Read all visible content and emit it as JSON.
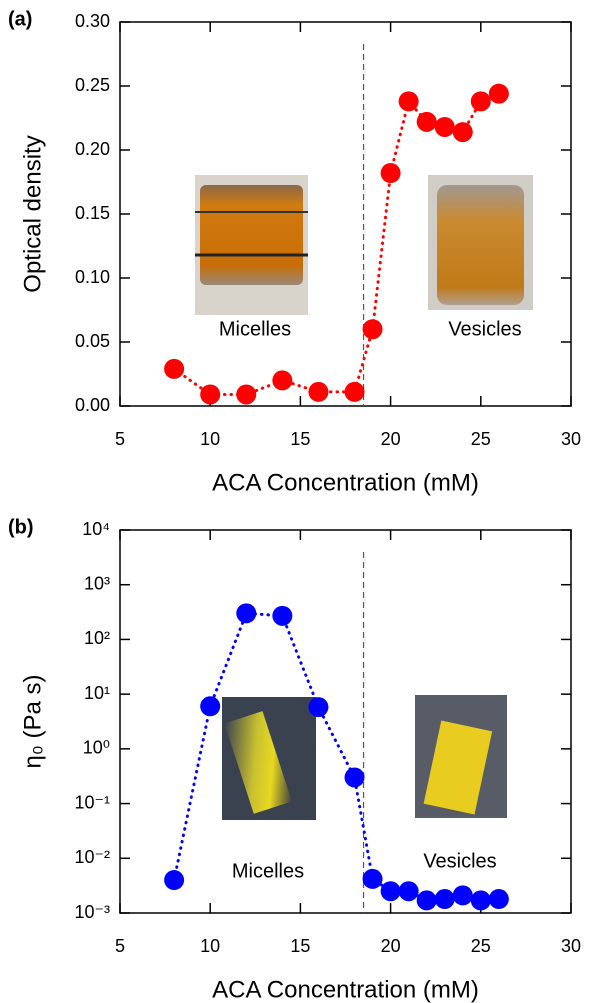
{
  "chart_data": [
    {
      "type": "line",
      "panel_label": "(a)",
      "x_label": "ACA Concentration (mM)",
      "y_label": "Optical density",
      "x": [
        8,
        10,
        12,
        14,
        16,
        18,
        19,
        20,
        21,
        22,
        23,
        24,
        25,
        26
      ],
      "values": [
        0.029,
        0.009,
        0.009,
        0.02,
        0.011,
        0.011,
        0.06,
        0.182,
        0.238,
        0.222,
        0.218,
        0.214,
        0.238,
        0.244
      ],
      "color": "#ff0000",
      "line_style": "dotted",
      "marker": "circle",
      "xlim": [
        5,
        30
      ],
      "xticks": [
        5,
        10,
        15,
        20,
        25,
        30
      ],
      "ylim": [
        0,
        0.3
      ],
      "yticks": [
        {
          "value": 0,
          "label": "0.00"
        },
        {
          "value": 0.05,
          "label": "0.05"
        },
        {
          "value": 0.1,
          "label": "0.10"
        },
        {
          "value": 0.15,
          "label": "0.15"
        },
        {
          "value": 0.2,
          "label": "0.20"
        },
        {
          "value": 0.25,
          "label": "0.25"
        },
        {
          "value": 0.3,
          "label": "0.30"
        }
      ],
      "y_scale": "linear",
      "vline": 18.5,
      "annotations": [
        "Micelles",
        "Vesicles"
      ]
    },
    {
      "type": "line",
      "panel_label": "(b)",
      "x_label": "ACA Concentration (mM)",
      "y_label": "η₀ (Pa s)",
      "x": [
        8,
        10,
        12,
        14,
        16,
        18,
        19,
        20,
        21,
        22,
        23,
        24,
        25,
        26
      ],
      "values": [
        0.004,
        6,
        300,
        270,
        5.8,
        0.3,
        0.0042,
        0.0025,
        0.0025,
        0.0017,
        0.0018,
        0.0021,
        0.0017,
        0.0018
      ],
      "color": "#0000ff",
      "line_style": "dotted",
      "marker": "circle",
      "xlim": [
        5,
        30
      ],
      "xticks": [
        5,
        10,
        15,
        20,
        25,
        30
      ],
      "ylim": [
        0.001,
        10000
      ],
      "yticks": [
        {
          "value": 0.001,
          "label": "10⁻³"
        },
        {
          "value": 0.01,
          "label": "10⁻²"
        },
        {
          "value": 0.1,
          "label": "10⁻¹"
        },
        {
          "value": 1,
          "label": "10⁰"
        },
        {
          "value": 10,
          "label": "10¹"
        },
        {
          "value": 100,
          "label": "10²"
        },
        {
          "value": 1000,
          "label": "10³"
        },
        {
          "value": 10000,
          "label": "10⁴"
        }
      ],
      "y_scale": "log",
      "vline": 18.5,
      "annotations": [
        "Micelles",
        "Vesicles"
      ]
    }
  ]
}
